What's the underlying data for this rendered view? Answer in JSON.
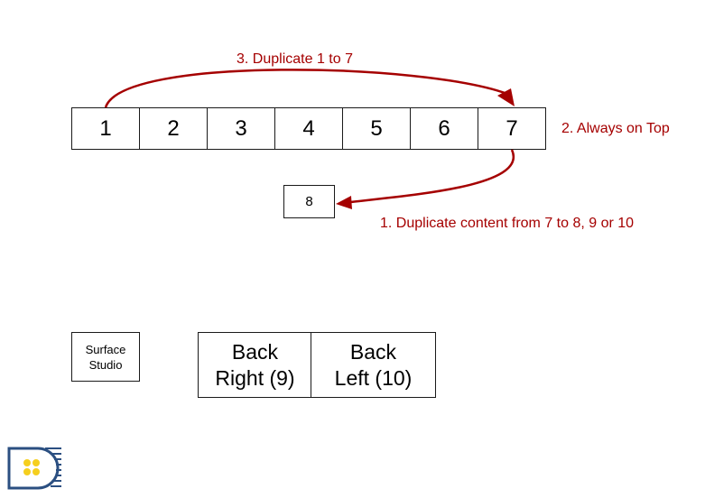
{
  "diagram": {
    "monitor_row": [
      "1",
      "2",
      "3",
      "4",
      "5",
      "6",
      "7"
    ],
    "box_8": "8",
    "surface_studio": {
      "line1": "Surface",
      "line2": "Studio"
    },
    "back_right": {
      "line1": "Back",
      "line2": "Right (9)"
    },
    "back_left": {
      "line1": "Back",
      "line2": "Left (10)"
    },
    "annotations": {
      "duplicate_1_to_7": "3. Duplicate 1 to 7",
      "always_on_top": "2. Always on Top",
      "duplicate_7_to_8": "1. Duplicate content from 7 to 8, 9 or 10"
    },
    "colors": {
      "arrow": "#a50000",
      "border": "#1a1a1a",
      "logo_blue": "#2b4f81",
      "logo_yellow": "#f5cf1e"
    }
  }
}
